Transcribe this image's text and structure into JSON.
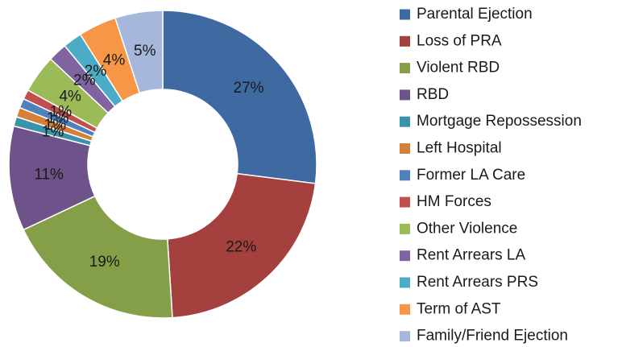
{
  "chart_data": {
    "type": "donut",
    "categories": [
      "Parental Ejection",
      "Loss of PRA",
      "Violent RBD",
      "RBD",
      "Mortgage Repossession",
      "Left Hospital",
      "Former LA Care",
      "HM Forces",
      "Other Violence",
      "Rent Arrears LA",
      "Rent Arrears PRS",
      "Term of AST",
      "Family/Friend Ejection"
    ],
    "values": [
      27,
      22,
      19,
      11,
      1,
      1,
      1,
      1,
      4,
      2,
      2,
      4,
      5
    ],
    "value_labels": [
      "27%",
      "22%",
      "19%",
      "11%",
      "1%",
      "1%",
      "1%",
      "1%",
      "4%",
      "2%",
      "2%",
      "4%",
      "5%"
    ],
    "colors": [
      "#3e6aa1",
      "#a4403d",
      "#849f48",
      "#6d5389",
      "#3a93ab",
      "#d48137",
      "#4f81bd",
      "#c0504d",
      "#9bbb59",
      "#8064a2",
      "#4bacc6",
      "#f79646",
      "#a5b7db"
    ],
    "legend": "right"
  }
}
